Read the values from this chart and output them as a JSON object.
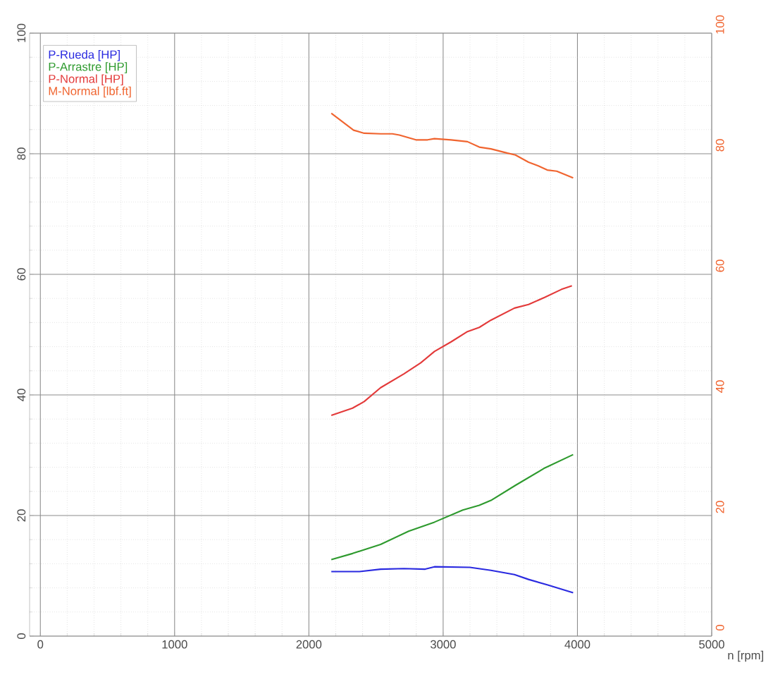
{
  "chart_data": {
    "type": "line",
    "xlabel": "n [rpm]",
    "xlim": [
      -80,
      5000
    ],
    "xticks": [
      0,
      1000,
      2000,
      3000,
      4000,
      5000
    ],
    "ylim": [
      0,
      100
    ],
    "yticks": [
      0,
      20,
      40,
      60,
      80,
      100
    ],
    "y2lim": [
      0,
      100
    ],
    "y2ticks": [
      0,
      20,
      40,
      60,
      80,
      100
    ],
    "grid": true,
    "legend": "top left",
    "marker": "none",
    "line_style": "solid",
    "series": [
      {
        "name": "P-Rueda [HP]",
        "color": "#2a2ae0",
        "x": [
          2167,
          2377,
          2534,
          2708,
          2866,
          2935,
          3199,
          3356,
          3531,
          3636,
          3775,
          3968
        ],
        "values": [
          10.7,
          10.7,
          11.1,
          11.2,
          11.1,
          11.5,
          11.4,
          10.9,
          10.2,
          9.4,
          8.5,
          7.2
        ]
      },
      {
        "name": "P-Arrastre [HP]",
        "color": "#2e9a2e",
        "x": [
          2167,
          2325,
          2534,
          2743,
          2935,
          3146,
          3269,
          3356,
          3538,
          3758,
          3968
        ],
        "values": [
          12.7,
          13.7,
          15.2,
          17.4,
          18.9,
          20.9,
          21.7,
          22.5,
          25.0,
          27.9,
          30.1
        ]
      },
      {
        "name": "P-Normal [HP]",
        "color": "#e33a3a",
        "x": [
          2167,
          2325,
          2412,
          2534,
          2708,
          2832,
          2935,
          3059,
          3181,
          3269,
          3356,
          3531,
          3636,
          3758,
          3881,
          3959
        ],
        "values": [
          36.6,
          37.8,
          38.9,
          41.2,
          43.5,
          45.3,
          47.2,
          48.8,
          50.5,
          51.2,
          52.4,
          54.4,
          55.0,
          56.2,
          57.5,
          58.1
        ]
      },
      {
        "name": "M-Normal [lbf.ft]",
        "color": "#f0642f",
        "axis": "y2",
        "x": [
          2167,
          2333,
          2412,
          2534,
          2622,
          2674,
          2797,
          2884,
          2935,
          3059,
          3181,
          3269,
          3356,
          3479,
          3538,
          3636,
          3706,
          3775,
          3846,
          3968
        ],
        "values": [
          86.7,
          83.9,
          83.4,
          83.3,
          83.3,
          83.1,
          82.3,
          82.3,
          82.5,
          82.3,
          82.0,
          81.1,
          80.8,
          80.1,
          79.8,
          78.6,
          78.0,
          77.3,
          77.1,
          76.0
        ]
      }
    ]
  }
}
